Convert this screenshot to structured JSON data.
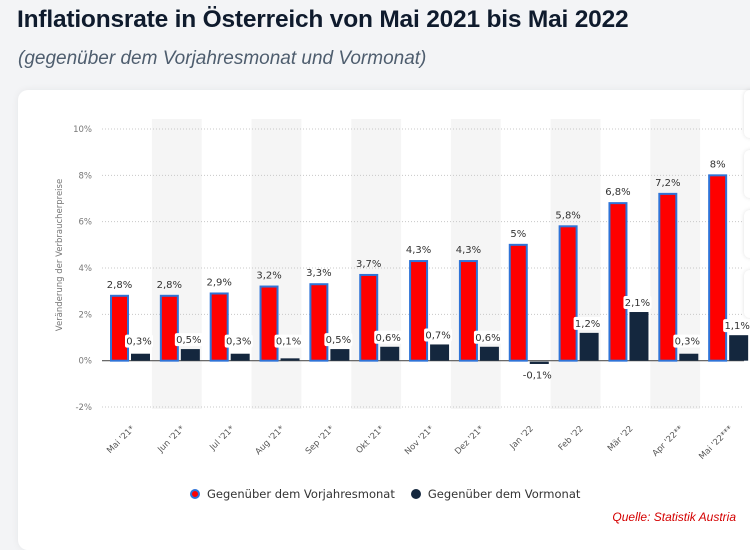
{
  "header": {
    "title": "Inflationsrate in Österreich von Mai 2021 bis Mai 2022",
    "subtitle": "(gegenüber dem Vorjahresmonat und Vormonat)"
  },
  "colors": {
    "yoy_fill": "#ff0000",
    "yoy_stroke": "#2f74d8",
    "mom_fill": "#14273e",
    "band": "#f5f5f5",
    "grid": "#c8c8c8",
    "axis_text": "#777777",
    "label_text": "#333333",
    "source": "#d40000"
  },
  "source": "Quelle: Statistik Austria",
  "chart_data": {
    "type": "bar",
    "title": "Inflationsrate in Österreich von Mai 2021 bis Mai 2022",
    "subtitle": "(gegenüber dem Vorjahresmonat und Vormonat)",
    "xlabel": "",
    "ylabel": "Veränderung der Verbraucherpreise",
    "ylim": [
      -2,
      10
    ],
    "yticks": [
      -2,
      0,
      2,
      4,
      6,
      8,
      10
    ],
    "ytick_labels": [
      "-2%",
      "0%",
      "2%",
      "4%",
      "6%",
      "8%",
      "10%"
    ],
    "grid": true,
    "legend_position": "bottom",
    "categories": [
      "Mai '21*",
      "Jun '21*",
      "Jul '21*",
      "Aug '21*",
      "Sep '21*",
      "Okt '21*",
      "Nov '21*",
      "Dez '21*",
      "Jan '22",
      "Feb '22",
      "Mär '22",
      "Apr '22**",
      "Mai '22***"
    ],
    "series": [
      {
        "name": "Gegenüber dem Vorjahresmonat",
        "values": [
          2.8,
          2.8,
          2.9,
          3.2,
          3.3,
          3.7,
          4.3,
          4.3,
          5.0,
          5.8,
          6.8,
          7.2,
          8.0
        ],
        "labels": [
          "2,8%",
          "2,8%",
          "2,9%",
          "3,2%",
          "3,3%",
          "3,7%",
          "4,3%",
          "4,3%",
          "5%",
          "5,8%",
          "6,8%",
          "7,2%",
          "8%"
        ]
      },
      {
        "name": "Gegenüber dem Vormonat",
        "values": [
          0.3,
          0.5,
          0.3,
          0.1,
          0.5,
          0.6,
          0.7,
          0.6,
          -0.1,
          1.2,
          2.1,
          0.3,
          1.1
        ],
        "labels": [
          "0,3%",
          "0,5%",
          "0,3%",
          "0,1%",
          "0,5%",
          "0,6%",
          "0,7%",
          "0,6%",
          "-0,1%",
          "1,2%",
          "2,1%",
          "0,3%",
          "1,1%"
        ]
      }
    ]
  }
}
